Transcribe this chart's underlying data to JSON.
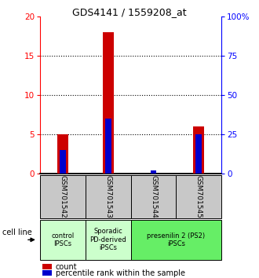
{
  "title": "GDS4141 / 1559208_at",
  "samples": [
    "GSM701542",
    "GSM701543",
    "GSM701544",
    "GSM701545"
  ],
  "count_values": [
    5,
    18,
    0,
    6
  ],
  "percentile_values": [
    15,
    35,
    2,
    25
  ],
  "ylim_left": [
    0,
    20
  ],
  "ylim_right": [
    0,
    100
  ],
  "yticks_left": [
    0,
    5,
    10,
    15,
    20
  ],
  "yticks_right": [
    0,
    25,
    50,
    75,
    100
  ],
  "ytick_labels_right": [
    "0",
    "25",
    "50",
    "75",
    "100%"
  ],
  "bar_color": "#cc0000",
  "percentile_color": "#0000cc",
  "sample_box_color": "#c8c8c8",
  "groups": [
    {
      "cols": [
        0
      ],
      "label": "control\nIPSCs",
      "color": "#ccffcc"
    },
    {
      "cols": [
        1
      ],
      "label": "Sporadic\nPD-derived\niPSCs",
      "color": "#ccffcc"
    },
    {
      "cols": [
        2,
        3
      ],
      "label": "presenilin 2 (PS2)\niPSCs",
      "color": "#66ee66"
    }
  ],
  "legend_count_label": "count",
  "legend_percentile_label": "percentile rank within the sample",
  "cell_line_label": "cell line",
  "title_fontsize": 9,
  "tick_fontsize": 7.5,
  "sample_fontsize": 6.5,
  "group_fontsize": 6,
  "legend_fontsize": 7,
  "axis_label_fontsize": 7
}
